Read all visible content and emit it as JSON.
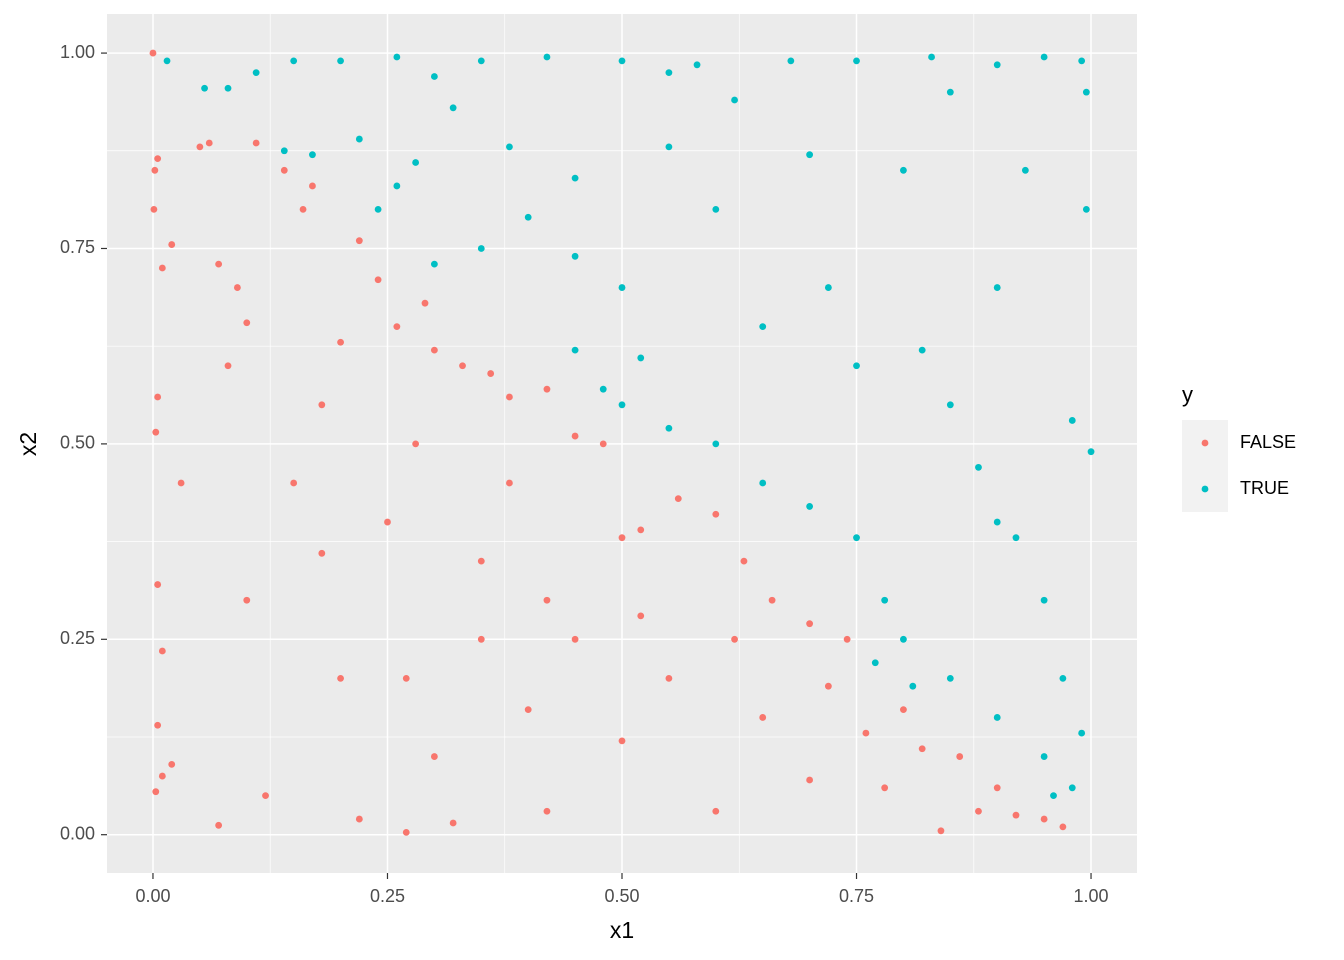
{
  "chart_data": {
    "type": "scatter",
    "x_label": "x1",
    "y_label": "x2",
    "legend_title": "y",
    "legend_position": "right",
    "xlim": [
      -0.049,
      1.049
    ],
    "ylim": [
      -0.049,
      1.05
    ],
    "xticks": [
      {
        "value": 0,
        "label": "0.00"
      },
      {
        "value": 0.25,
        "label": "0.25"
      },
      {
        "value": 0.5,
        "label": "0.50"
      },
      {
        "value": 0.75,
        "label": "0.75"
      },
      {
        "value": 1,
        "label": "1.00"
      }
    ],
    "yticks": [
      {
        "value": 0,
        "label": "0.00"
      },
      {
        "value": 0.25,
        "label": "0.25"
      },
      {
        "value": 0.5,
        "label": "0.50"
      },
      {
        "value": 0.75,
        "label": "0.75"
      },
      {
        "value": 1,
        "label": "1.00"
      }
    ],
    "grid": true,
    "minor_grid": true,
    "background": "#EBEBEB",
    "series": [
      {
        "name": "FALSE",
        "color": "#F8766D",
        "x": [
          0,
          0.002,
          0.005,
          0.001,
          0.01,
          0.02,
          0.003,
          0.005,
          0.005,
          0.01,
          0.005,
          0.003,
          0.01,
          0.02,
          0.05,
          0.06,
          0.07,
          0.09,
          0.1,
          0.11,
          0.14,
          0.16,
          0.17,
          0.2,
          0.22,
          0.24,
          0.26,
          0.29,
          0.3,
          0.33,
          0.36,
          0.38,
          0.42,
          0.45,
          0.48,
          0.5,
          0.52,
          0.56,
          0.6,
          0.63,
          0.66,
          0.7,
          0.74,
          0.76,
          0.8,
          0.82,
          0.86,
          0.88,
          0.9,
          0.95,
          0.97,
          0.84,
          0.7,
          0.6,
          0.5,
          0.4,
          0.3,
          0.2,
          0.1,
          0.15,
          0.25,
          0.35,
          0.45,
          0.55,
          0.65,
          0.03,
          0.08,
          0.18,
          0.28,
          0.38,
          0.42,
          0.52,
          0.62,
          0.72,
          0.78,
          0.92,
          0.12,
          0.22,
          0.32,
          0.42,
          0.27,
          0.07,
          0.35,
          0.18,
          0.27
        ],
        "values": [
          1,
          0.85,
          0.865,
          0.8,
          0.725,
          0.755,
          0.515,
          0.56,
          0.32,
          0.235,
          0.14,
          0.055,
          0.075,
          0.09,
          0.88,
          0.885,
          0.73,
          0.7,
          0.655,
          0.885,
          0.85,
          0.8,
          0.83,
          0.63,
          0.76,
          0.71,
          0.65,
          0.68,
          0.62,
          0.6,
          0.59,
          0.56,
          0.57,
          0.51,
          0.5,
          0.38,
          0.39,
          0.43,
          0.41,
          0.35,
          0.3,
          0.27,
          0.25,
          0.13,
          0.16,
          0.11,
          0.1,
          0.03,
          0.06,
          0.02,
          0.01,
          0.005,
          0.07,
          0.03,
          0.12,
          0.16,
          0.1,
          0.2,
          0.3,
          0.45,
          0.4,
          0.35,
          0.25,
          0.2,
          0.15,
          0.45,
          0.6,
          0.55,
          0.5,
          0.45,
          0.3,
          0.28,
          0.25,
          0.19,
          0.06,
          0.025,
          0.05,
          0.02,
          0.015,
          0.03,
          0.003,
          0.012,
          0.25,
          0.36,
          0.2
        ]
      },
      {
        "name": "TRUE",
        "color": "#00BFC4",
        "x": [
          0.015,
          0.055,
          0.08,
          0.11,
          0.15,
          0.2,
          0.26,
          0.3,
          0.35,
          0.42,
          0.5,
          0.55,
          0.58,
          0.68,
          0.75,
          0.83,
          0.9,
          0.95,
          0.99,
          0.995,
          0.14,
          0.17,
          0.22,
          0.24,
          0.26,
          0.3,
          0.35,
          0.4,
          0.45,
          0.5,
          0.52,
          0.45,
          0.48,
          0.5,
          0.55,
          0.6,
          0.65,
          0.7,
          0.75,
          0.78,
          0.8,
          0.85,
          0.9,
          0.95,
          0.96,
          0.98,
          0.99,
          1,
          0.995,
          0.98,
          0.6,
          0.7,
          0.8,
          0.85,
          0.9,
          0.65,
          0.75,
          0.85,
          0.9,
          0.95,
          0.82,
          0.72,
          0.62,
          0.38,
          0.32,
          0.28,
          0.45,
          0.55,
          0.93,
          0.88,
          0.97,
          0.77,
          0.81,
          0.92
        ],
        "values": [
          0.99,
          0.955,
          0.955,
          0.975,
          0.99,
          0.99,
          0.995,
          0.97,
          0.99,
          0.995,
          0.99,
          0.975,
          0.985,
          0.99,
          0.99,
          0.995,
          0.985,
          0.995,
          0.99,
          0.95,
          0.875,
          0.87,
          0.89,
          0.8,
          0.83,
          0.73,
          0.75,
          0.79,
          0.74,
          0.7,
          0.61,
          0.62,
          0.57,
          0.55,
          0.52,
          0.5,
          0.45,
          0.42,
          0.38,
          0.3,
          0.25,
          0.2,
          0.15,
          0.1,
          0.05,
          0.06,
          0.13,
          0.49,
          0.8,
          0.53,
          0.8,
          0.87,
          0.85,
          0.95,
          0.7,
          0.65,
          0.6,
          0.55,
          0.4,
          0.3,
          0.62,
          0.7,
          0.94,
          0.88,
          0.93,
          0.86,
          0.84,
          0.88,
          0.85,
          0.47,
          0.2,
          0.22,
          0.19,
          0.38
        ]
      }
    ]
  }
}
